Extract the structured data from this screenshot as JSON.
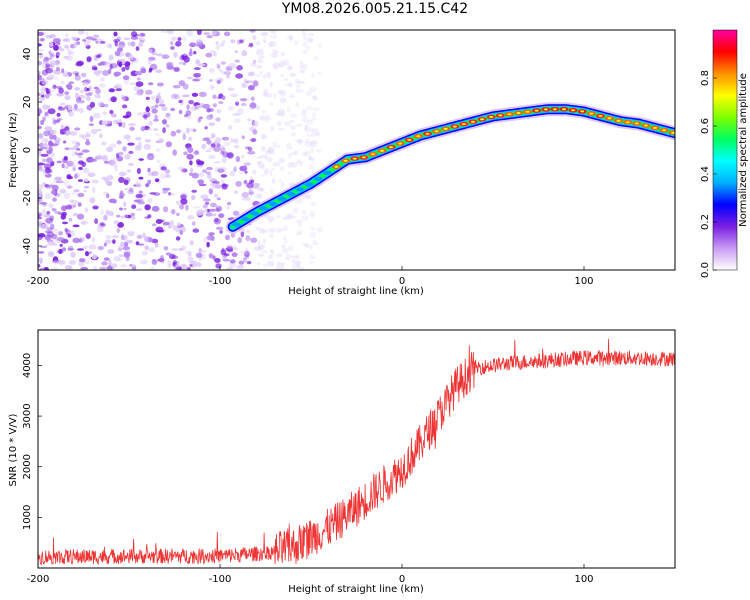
{
  "title": "YM08.2026.005.21.15.C42",
  "chart_data": [
    {
      "type": "heatmap",
      "title": "YM08.2026.005.21.15.C42",
      "xlabel": "Height of straight line (km)",
      "ylabel": "Frequency (Hz)",
      "xlim": [
        -200,
        150
      ],
      "ylim": [
        -50,
        50
      ],
      "xticks": [
        -200,
        -100,
        0,
        100
      ],
      "yticks": [
        -40,
        -20,
        0,
        20,
        40
      ],
      "ridge": {
        "x": [
          -93,
          -80,
          -70,
          -60,
          -50,
          -40,
          -30,
          -20,
          -10,
          0,
          10,
          20,
          30,
          40,
          50,
          60,
          70,
          80,
          90,
          100,
          110,
          120,
          130,
          140,
          150
        ],
        "y": [
          -32,
          -26,
          -22,
          -18,
          -14,
          -9,
          -4,
          -3,
          0,
          3,
          6,
          8,
          10,
          12,
          14,
          15,
          16,
          17,
          17,
          16,
          14,
          12,
          11,
          9,
          7
        ]
      },
      "noise_region": {
        "x": [
          -200,
          -65
        ],
        "y": [
          -50,
          50
        ]
      },
      "colorbar": {
        "label": "Normalized spectral amplitude",
        "range": [
          0,
          1
        ],
        "ticks": [
          "0.0",
          "0.2",
          "0.4",
          "0.6",
          "0.8"
        ],
        "colors": [
          "#ffffff",
          "#c89bf5",
          "#7a1fe0",
          "#0000ff",
          "#00b0ff",
          "#00ffff",
          "#00ff60",
          "#80ff00",
          "#ffff00",
          "#ff9000",
          "#ff0000",
          "#ff00a0"
        ]
      }
    },
    {
      "type": "line",
      "xlabel": "Height of straight line (km)",
      "ylabel": "SNR (10 * V/V)",
      "xlim": [
        -200,
        150
      ],
      "ylim": [
        0,
        4700
      ],
      "xticks": [
        -200,
        -100,
        0,
        100
      ],
      "yticks": [
        1000,
        2000,
        3000,
        4000
      ],
      "color": "#ee3333",
      "trend": {
        "x": [
          -200,
          -150,
          -100,
          -80,
          -70,
          -60,
          -50,
          -40,
          -30,
          -20,
          -10,
          0,
          10,
          20,
          30,
          40,
          60,
          80,
          100,
          120,
          150
        ],
        "y": [
          220,
          230,
          240,
          280,
          320,
          420,
          600,
          800,
          1050,
          1350,
          1650,
          1950,
          2450,
          3000,
          3600,
          3950,
          4050,
          4100,
          4150,
          4150,
          4130
        ]
      },
      "noise_amplitude": 150
    }
  ]
}
